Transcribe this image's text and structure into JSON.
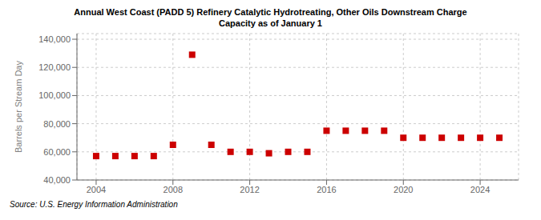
{
  "chart_data": {
    "type": "scatter",
    "title": "Annual West Coast (PADD 5) Refinery Catalytic Hydrotreating, Other Oils Downstream Charge\nCapacity as of January 1",
    "ylabel": "Barrels per Stream Day",
    "source": "Source: U.S. Energy Information Administration",
    "x": [
      2004,
      2005,
      2006,
      2007,
      2008,
      2009,
      2010,
      2011,
      2012,
      2013,
      2014,
      2015,
      2016,
      2017,
      2018,
      2019,
      2020,
      2021,
      2022,
      2023,
      2024,
      2025
    ],
    "values": [
      57000,
      57000,
      57000,
      57000,
      65000,
      129000,
      65000,
      60000,
      60000,
      59000,
      60000,
      60000,
      75000,
      75000,
      75000,
      75000,
      70000,
      70000,
      70000,
      70000,
      70000,
      70000
    ],
    "color": "#cc0000",
    "marker": "square",
    "line_style": "none",
    "xlim": [
      2003.0,
      2026.0
    ],
    "ylim": [
      40000,
      144000
    ],
    "xticks": [
      2004,
      2008,
      2012,
      2016,
      2020,
      2024
    ],
    "yticks": [
      {
        "value": 40000,
        "label": "40,000"
      },
      {
        "value": 60000,
        "label": "60,000"
      },
      {
        "value": 80000,
        "label": "80,000"
      },
      {
        "value": 100000,
        "label": "100,000"
      },
      {
        "value": 120000,
        "label": "120,000"
      },
      {
        "value": 140000,
        "label": "140,000"
      }
    ],
    "grid": true
  }
}
